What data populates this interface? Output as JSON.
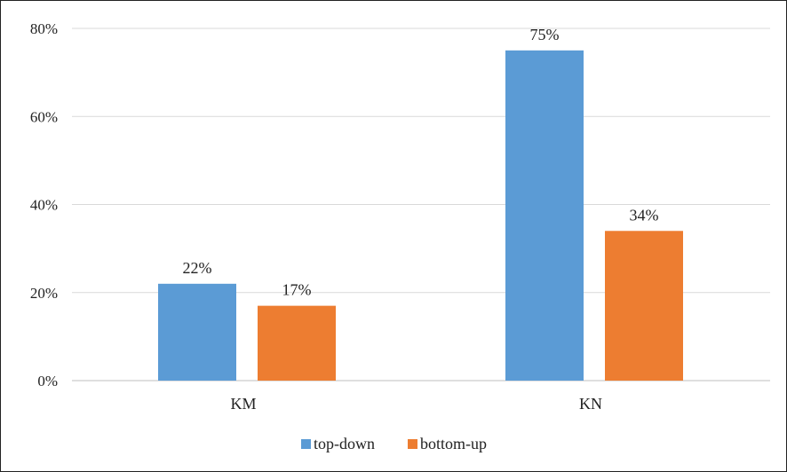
{
  "chart_data": {
    "type": "bar",
    "categories": [
      "KM",
      "KN"
    ],
    "series": [
      {
        "name": "top-down",
        "values": [
          22,
          75
        ],
        "labels": [
          "22%",
          "75%"
        ],
        "color": "#5b9bd5"
      },
      {
        "name": "bottom-up",
        "values": [
          17,
          34
        ],
        "labels": [
          "17%",
          "34%"
        ],
        "color": "#ed7d31"
      }
    ],
    "yticks": [
      "0%",
      "20%",
      "40%",
      "60%",
      "80%"
    ],
    "ytick_values": [
      0,
      20,
      40,
      60,
      80
    ],
    "ylim": [
      0,
      80
    ],
    "unit": "%",
    "title": "",
    "xlabel": "",
    "ylabel": "",
    "grid": true,
    "legend": "bottom"
  }
}
